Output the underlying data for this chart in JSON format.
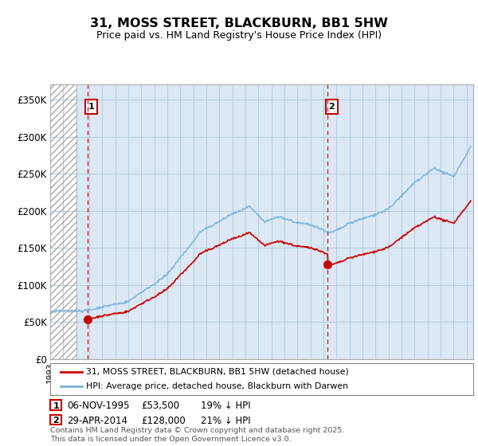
{
  "title": "31, MOSS STREET, BLACKBURN, BB1 5HW",
  "subtitle": "Price paid vs. HM Land Registry's House Price Index (HPI)",
  "ylim": [
    0,
    370000
  ],
  "yticks": [
    0,
    50000,
    100000,
    150000,
    200000,
    250000,
    300000,
    350000
  ],
  "ytick_labels": [
    "£0",
    "£50K",
    "£100K",
    "£150K",
    "£200K",
    "£250K",
    "£300K",
    "£350K"
  ],
  "xlim_start": 1993.0,
  "xlim_end": 2025.5,
  "hpi_color": "#7ab3d9",
  "price_color": "#cc0000",
  "bg_plot_color": "#dce9f5",
  "bg_fig_color": "#ffffff",
  "sale1_date": 1995.85,
  "sale1_price": 53500,
  "sale2_date": 2014.33,
  "sale2_price": 128000,
  "legend_label_price": "31, MOSS STREET, BLACKBURN, BB1 5HW (detached house)",
  "legend_label_hpi": "HPI: Average price, detached house, Blackburn with Darwen",
  "footnote": "Contains HM Land Registry data © Crown copyright and database right 2025.\nThis data is licensed under the Open Government Licence v3.0.",
  "grid_color": "#b8cfe0",
  "hatch_color": "#b0c4d8"
}
